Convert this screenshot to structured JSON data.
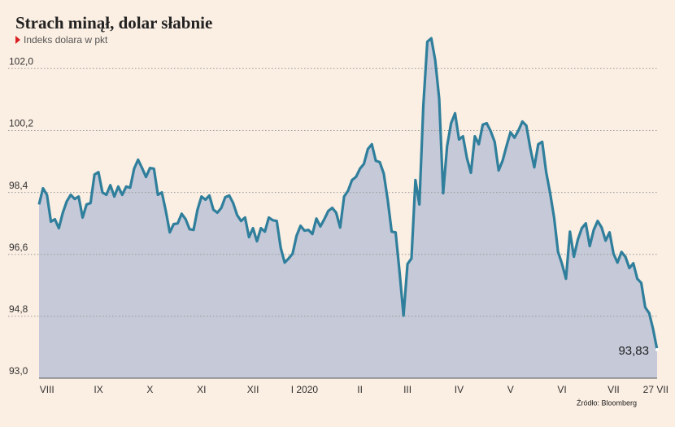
{
  "chart_data": {
    "type": "line",
    "title": "Strach minął, dolar słabnie",
    "subtitle": "Indeks dolara w pkt",
    "source": "Źródło: Bloomberg",
    "color": "#2f7f9c",
    "fill_color": "#c5c9d8",
    "grid": true,
    "ylim": [
      93,
      103
    ],
    "yticks": [
      {
        "value": 93.0,
        "label": "93,0"
      },
      {
        "value": 94.8,
        "label": "94,8"
      },
      {
        "value": 96.6,
        "label": "96,6"
      },
      {
        "value": 98.4,
        "label": "98,4"
      },
      {
        "value": 100.2,
        "label": "100,2"
      },
      {
        "value": 102.0,
        "label": "102,0"
      }
    ],
    "categories": [
      null,
      null,
      "VIII",
      null,
      null,
      null,
      null,
      null,
      null,
      null,
      null,
      null,
      null,
      null,
      null,
      "IX",
      null,
      null,
      null,
      null,
      null,
      null,
      null,
      null,
      null,
      null,
      null,
      null,
      "X",
      null,
      null,
      null,
      null,
      null,
      null,
      null,
      null,
      null,
      null,
      null,
      null,
      "XI",
      null,
      null,
      null,
      null,
      null,
      null,
      null,
      null,
      null,
      null,
      null,
      null,
      "XII",
      null,
      null,
      null,
      null,
      null,
      null,
      null,
      null,
      null,
      null,
      null,
      null,
      "I 2020",
      null,
      null,
      null,
      null,
      null,
      null,
      null,
      null,
      null,
      null,
      null,
      null,
      null,
      "II",
      null,
      null,
      null,
      null,
      null,
      null,
      null,
      null,
      null,
      null,
      null,
      "III",
      null,
      null,
      null,
      null,
      null,
      null,
      null,
      null,
      null,
      null,
      null,
      null,
      "IV",
      null,
      null,
      null,
      null,
      null,
      null,
      null,
      null,
      null,
      null,
      null,
      null,
      "V",
      null,
      null,
      null,
      null,
      null,
      null,
      null,
      null,
      null,
      null,
      null,
      null,
      "VI",
      null,
      null,
      null,
      null,
      null,
      null,
      null,
      null,
      null,
      null,
      null,
      null,
      "VII",
      null,
      null,
      null,
      null,
      null,
      null,
      null,
      null,
      null,
      null,
      "27 VII"
    ],
    "values": [
      98.05,
      98.52,
      98.33,
      97.55,
      97.62,
      97.36,
      97.81,
      98.14,
      98.33,
      98.21,
      98.28,
      97.67,
      98.05,
      98.09,
      98.92,
      98.99,
      98.4,
      98.33,
      98.61,
      98.28,
      98.57,
      98.33,
      98.57,
      98.54,
      99.09,
      99.35,
      99.11,
      98.85,
      99.11,
      99.09,
      98.33,
      98.4,
      97.86,
      97.24,
      97.48,
      97.5,
      97.78,
      97.62,
      97.33,
      97.31,
      97.9,
      98.28,
      98.19,
      98.31,
      97.9,
      97.81,
      97.95,
      98.26,
      98.31,
      98.09,
      97.74,
      97.57,
      97.67,
      97.1,
      97.36,
      96.98,
      97.36,
      97.26,
      97.67,
      97.59,
      97.57,
      96.79,
      96.36,
      96.48,
      96.62,
      97.14,
      97.43,
      97.29,
      97.31,
      97.19,
      97.64,
      97.41,
      97.62,
      97.86,
      97.95,
      97.81,
      97.38,
      98.28,
      98.45,
      98.76,
      98.85,
      99.09,
      99.23,
      99.66,
      99.8,
      99.32,
      99.28,
      98.95,
      98.19,
      97.26,
      97.24,
      96.08,
      94.82,
      96.32,
      96.48,
      98.76,
      98.05,
      100.93,
      102.78,
      102.88,
      102.24,
      101.12,
      98.38,
      99.75,
      100.41,
      100.7,
      99.94,
      100.03,
      99.4,
      98.97,
      100.03,
      99.8,
      100.37,
      100.41,
      100.18,
      99.87,
      99.04,
      99.32,
      99.75,
      100.15,
      99.99,
      100.2,
      100.46,
      100.34,
      99.68,
      99.13,
      99.8,
      99.87,
      98.99,
      98.38,
      97.67,
      96.67,
      96.32,
      95.89,
      97.26,
      96.53,
      97.03,
      97.36,
      97.5,
      96.84,
      97.31,
      97.57,
      97.38,
      97.0,
      97.24,
      96.62,
      96.36,
      96.67,
      96.53,
      96.2,
      96.34,
      95.89,
      95.77,
      95.06,
      94.89,
      94.42,
      93.83
    ],
    "value_labels": [
      null,
      null,
      null,
      null,
      null,
      null,
      null,
      null,
      null,
      null,
      null,
      null,
      null,
      null,
      null,
      null,
      null,
      null,
      null,
      null,
      null,
      null,
      null,
      null,
      null,
      null,
      null,
      null,
      null,
      null,
      null,
      null,
      null,
      null,
      null,
      null,
      null,
      null,
      null,
      null,
      null,
      null,
      null,
      null,
      null,
      null,
      null,
      null,
      null,
      null,
      null,
      null,
      null,
      null,
      null,
      null,
      null,
      null,
      null,
      null,
      null,
      null,
      null,
      null,
      null,
      null,
      null,
      null,
      null,
      null,
      null,
      null,
      null,
      null,
      null,
      null,
      null,
      null,
      null,
      null,
      null,
      null,
      null,
      null,
      null,
      null,
      null,
      null,
      null,
      null,
      null,
      null,
      null,
      null,
      null,
      null,
      null,
      null,
      null,
      null,
      null,
      null,
      null,
      null,
      null,
      null,
      null,
      null,
      null,
      null,
      null,
      null,
      null,
      null,
      null,
      null,
      null,
      null,
      null,
      null,
      null,
      null,
      null,
      null,
      null,
      null,
      null,
      null,
      null,
      null,
      null,
      null,
      null,
      null,
      null,
      null,
      null,
      null,
      null,
      null,
      null,
      null,
      null,
      null,
      null,
      null,
      null,
      null,
      null,
      null,
      null,
      null,
      null,
      null,
      null,
      null,
      "93,83"
    ]
  }
}
